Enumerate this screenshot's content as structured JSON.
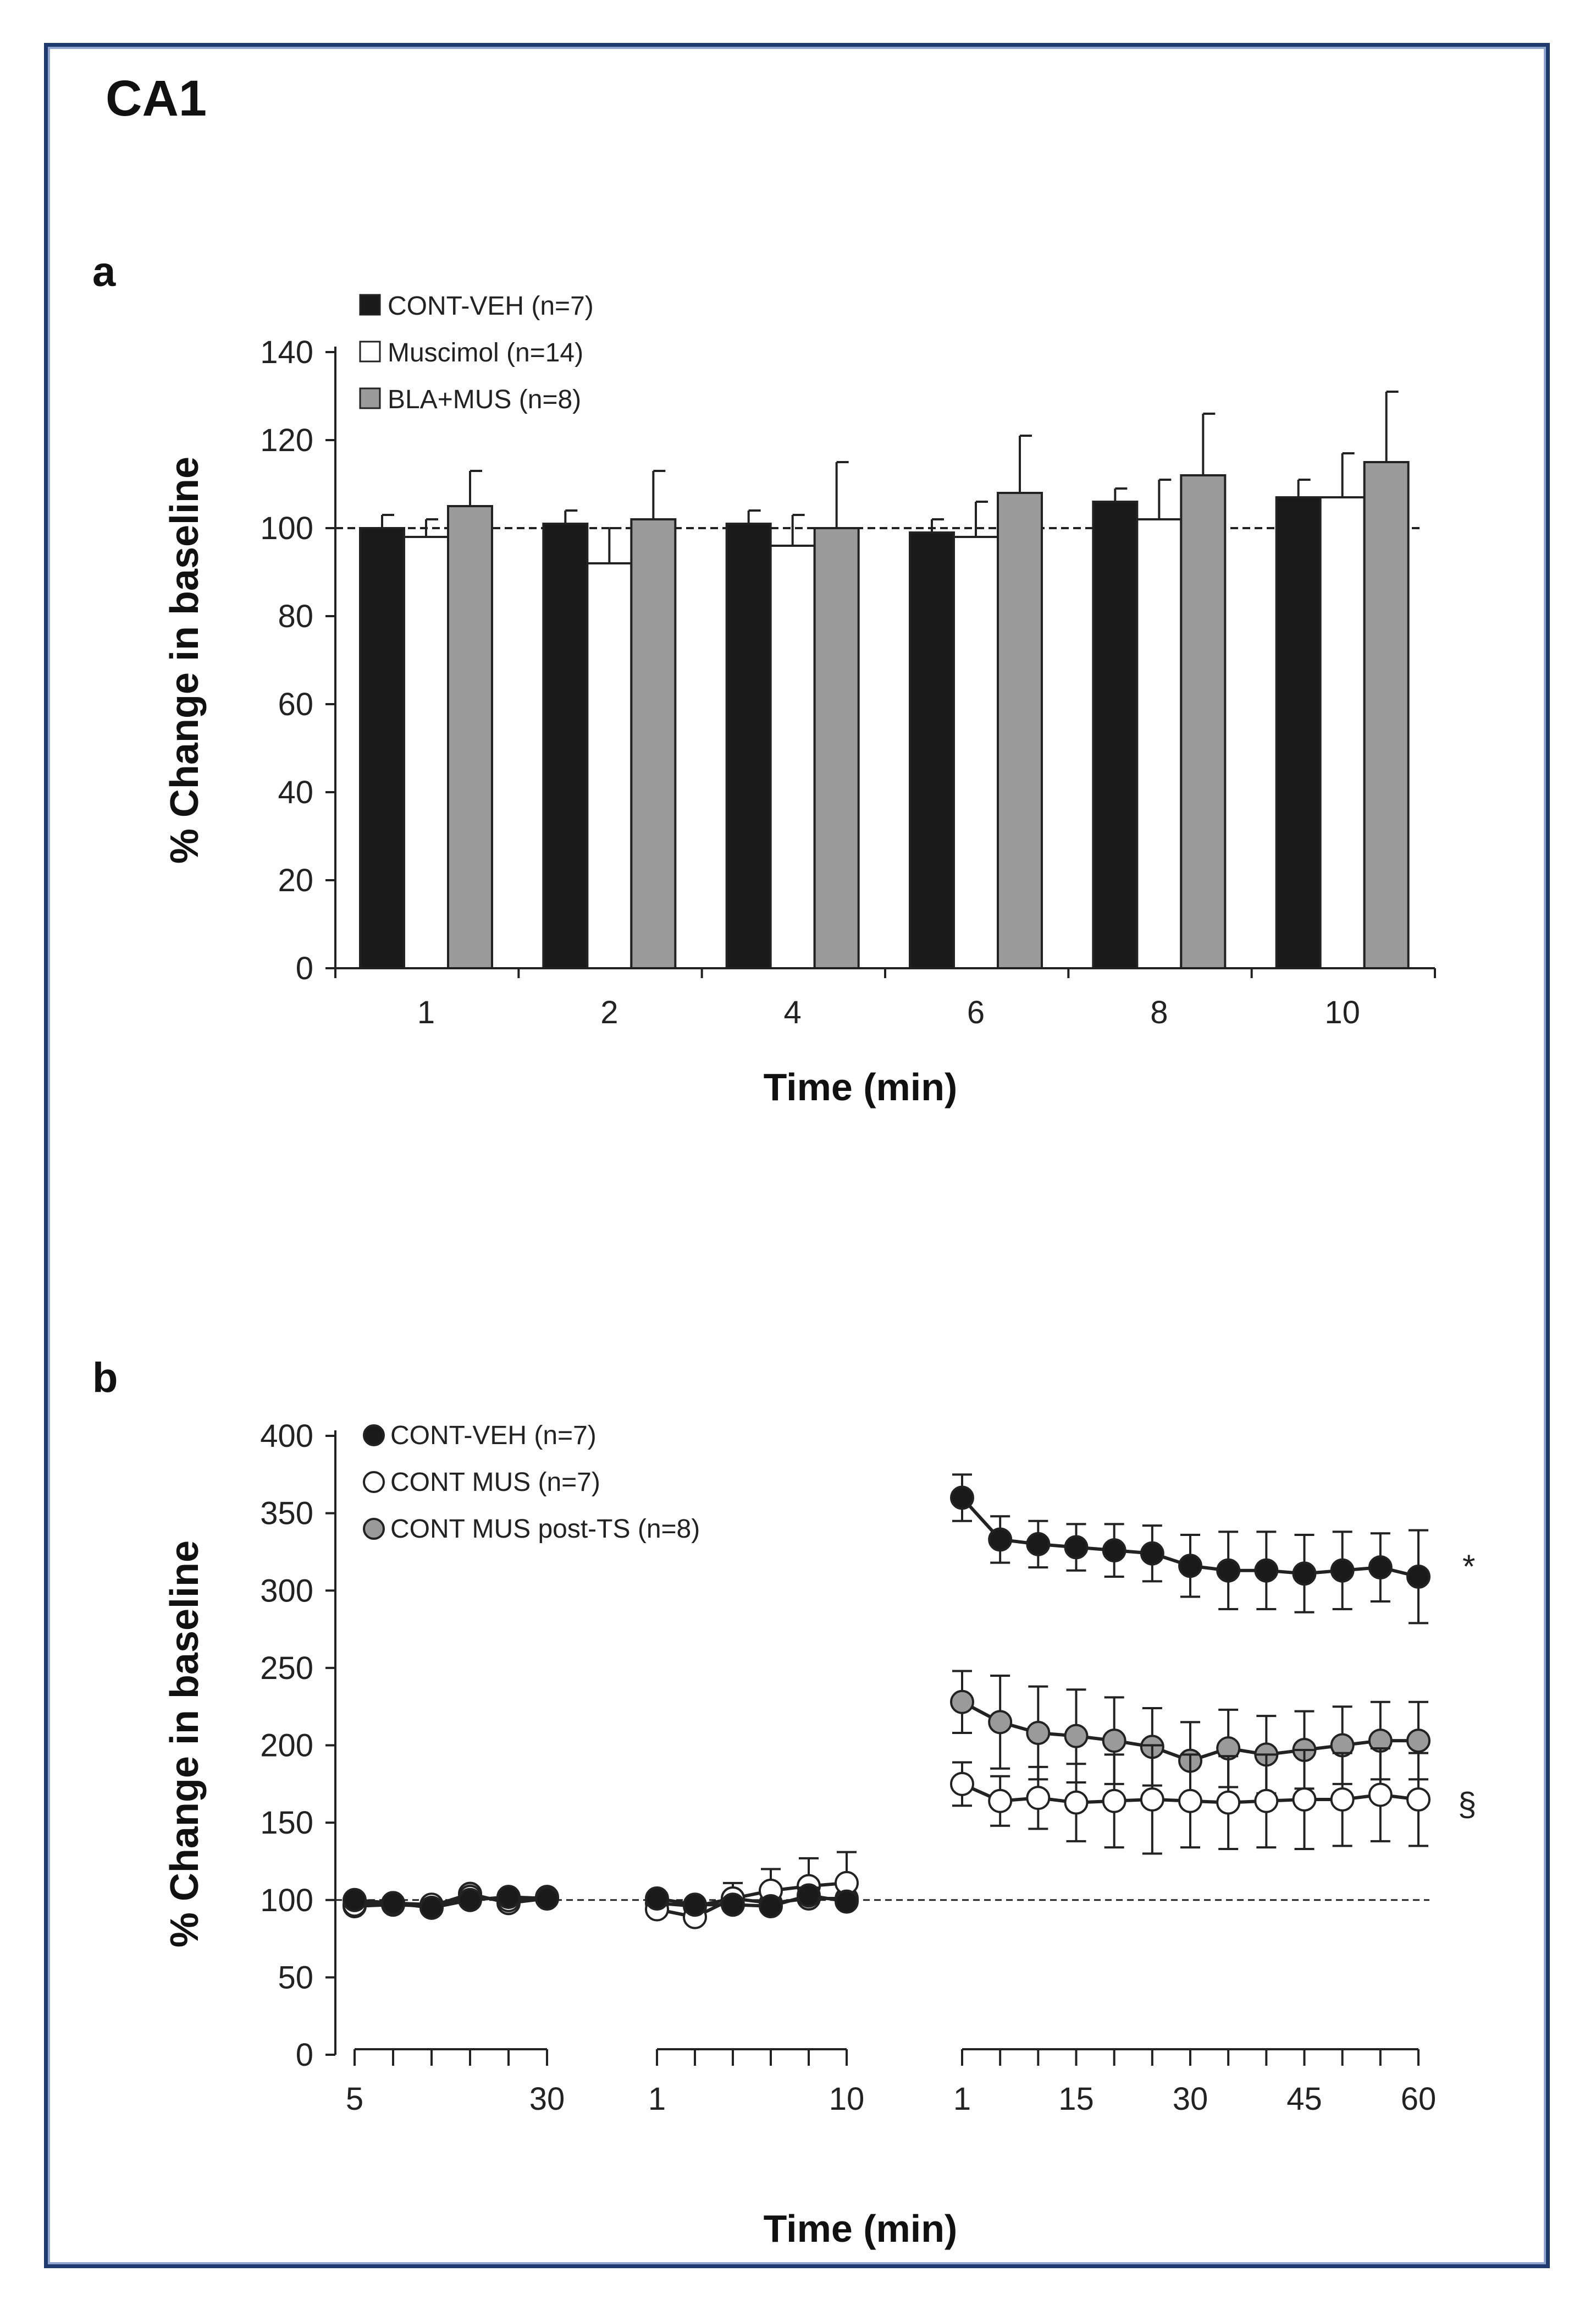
{
  "figure_title": "CA1",
  "panels": {
    "a_label": "a",
    "b_label": "b"
  },
  "colors": {
    "black": "#1a1a1a",
    "white": "#ffffff",
    "gray": "#9a9a9a",
    "frame": "#1f3a6e"
  },
  "chart_data": [
    {
      "type": "bar",
      "ylabel": "% Change in baseline",
      "xlabel": "Time (min)",
      "ylim": [
        0,
        140
      ],
      "yticks": [
        0,
        20,
        40,
        60,
        80,
        100,
        120,
        140
      ],
      "categories": [
        "1",
        "2",
        "4",
        "6",
        "8",
        "10"
      ],
      "reference_line": 100,
      "legend_position": "top-left",
      "series": [
        {
          "name": "CONT-VEH  (n=7)",
          "color": "black",
          "values": [
            100,
            101,
            101,
            99,
            106,
            107
          ],
          "errors": [
            3,
            3,
            3,
            3,
            3,
            4
          ]
        },
        {
          "name": "Muscimol (n=14)",
          "color": "white",
          "values": [
            98,
            92,
            96,
            98,
            102,
            107
          ],
          "errors": [
            4,
            8,
            7,
            8,
            9,
            10
          ]
        },
        {
          "name": "BLA+MUS (n=8)",
          "color": "gray",
          "values": [
            105,
            102,
            100,
            108,
            112,
            115
          ],
          "errors": [
            8,
            11,
            15,
            13,
            14,
            16
          ]
        }
      ]
    },
    {
      "type": "line",
      "ylabel": "% Change in baseline",
      "xlabel": "Time (min)",
      "ylim": [
        0,
        400
      ],
      "yticks": [
        0,
        50,
        100,
        150,
        200,
        250,
        300,
        350,
        400
      ],
      "reference_line": 100,
      "legend_position": "top-left",
      "segments": [
        {
          "tick_labels": [
            "5",
            "30"
          ],
          "points": 6
        },
        {
          "tick_labels": [
            "1",
            "10"
          ],
          "points": 6
        },
        {
          "tick_labels": [
            "1",
            "15",
            "30",
            "45",
            "60"
          ],
          "points": 13
        }
      ],
      "x": [
        5,
        10,
        15,
        20,
        25,
        30,
        1,
        2,
        4,
        6,
        8,
        10,
        1,
        5,
        10,
        15,
        20,
        25,
        30,
        35,
        40,
        45,
        50,
        55,
        60
      ],
      "series": [
        {
          "name": "CONT-VEH (n=7)",
          "color": "black",
          "marker": "filled",
          "values": [
            100,
            98,
            95,
            100,
            102,
            101,
            101,
            97,
            97,
            96,
            103,
            99,
            360,
            333,
            330,
            328,
            326,
            324,
            316,
            313,
            313,
            311,
            313,
            315,
            309
          ],
          "errors": [
            2,
            2,
            2,
            2,
            2,
            2,
            3,
            3,
            3,
            3,
            5,
            3,
            15,
            15,
            15,
            15,
            17,
            18,
            20,
            25,
            25,
            25,
            25,
            22,
            30
          ]
        },
        {
          "name": "CONT MUS (n=7)",
          "color": "white",
          "marker": "open",
          "values": [
            97,
            98,
            97,
            102,
            100,
            102,
            94,
            89,
            101,
            106,
            109,
            111,
            175,
            164,
            166,
            163,
            164,
            165,
            164,
            163,
            164,
            165,
            165,
            168,
            165
          ],
          "errors": [
            2,
            2,
            2,
            2,
            2,
            2,
            4,
            6,
            10,
            14,
            18,
            20,
            14,
            16,
            20,
            25,
            30,
            35,
            30,
            30,
            30,
            32,
            30,
            30,
            30
          ]
        },
        {
          "name": "CONT MUS post-TS (n=8)",
          "color": "gray",
          "marker": "gray",
          "values": [
            96,
            97,
            96,
            104,
            98,
            101,
            98,
            96,
            101,
            98,
            101,
            101,
            228,
            215,
            208,
            206,
            203,
            199,
            190,
            198,
            194,
            197,
            200,
            203,
            203
          ],
          "errors": [
            2,
            2,
            2,
            2,
            2,
            2,
            3,
            3,
            4,
            5,
            5,
            4,
            20,
            30,
            30,
            30,
            28,
            25,
            25,
            25,
            25,
            25,
            25,
            25,
            25
          ]
        }
      ],
      "annotations": [
        {
          "text": "*",
          "series": "CONT-VEH (n=7)"
        },
        {
          "text": "§",
          "series": "CONT MUS (n=7)"
        }
      ]
    }
  ]
}
